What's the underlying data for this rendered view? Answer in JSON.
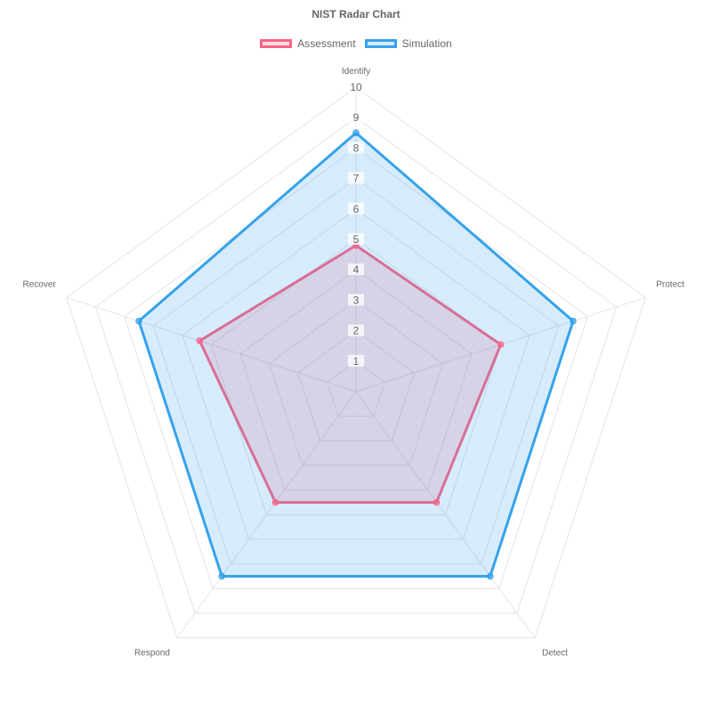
{
  "chart_data": {
    "type": "radar",
    "title": "NIST Radar Chart",
    "categories": [
      "Identify",
      "Protect",
      "Detect",
      "Respond",
      "Recover"
    ],
    "r_range": [
      0,
      10
    ],
    "ticks": [
      "1",
      "2",
      "3",
      "4",
      "5",
      "6",
      "7",
      "8",
      "9",
      "10"
    ],
    "legend_position": "top",
    "grid": true,
    "series": [
      {
        "name": "Assessment",
        "values": [
          4.8,
          5,
          4.5,
          4.5,
          5.4
        ],
        "color": "#ff6384",
        "fill": "rgba(255,99,132,0.2)"
      },
      {
        "name": "Simulation",
        "values": [
          8.5,
          7.5,
          7.5,
          7.5,
          7.5
        ],
        "color": "#36a2eb",
        "fill": "rgba(54,162,235,0.2)"
      }
    ]
  }
}
